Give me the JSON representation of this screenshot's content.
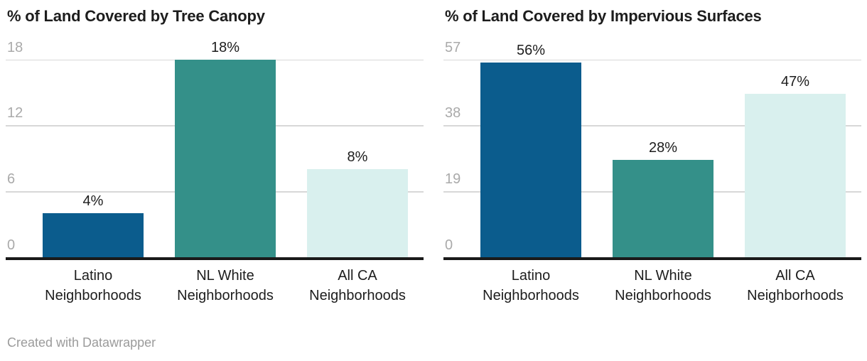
{
  "footer": {
    "credit": "Created with Datawrapper"
  },
  "colors": {
    "background": "#ffffff",
    "title_text": "#1d1d1d",
    "value_label_text": "#1d1d1d",
    "category_label_text": "#1d1d1d",
    "tick_label_text": "#aaaaaa",
    "gridline": "#d8d8d8",
    "baseline": "#1a1a1a",
    "footer_text": "#9b9b9b",
    "bar_latino": "#0b5c8d",
    "bar_nl_white": "#349089",
    "bar_all_ca": "#d9f0ee"
  },
  "chart_data": [
    {
      "type": "bar",
      "title": "% of Land Covered by Tree Canopy",
      "categories": [
        [
          "Latino",
          "Neighborhoods"
        ],
        [
          "NL White",
          "Neighborhoods"
        ],
        [
          "All CA",
          "Neighborhoods"
        ]
      ],
      "values": [
        4,
        18,
        8
      ],
      "value_labels": [
        "4%",
        "18%",
        "8%"
      ],
      "bar_color_keys": [
        "bar_latino",
        "bar_nl_white",
        "bar_all_ca"
      ],
      "yticks": [
        0,
        6,
        12,
        18
      ],
      "ytick_labels": [
        "0",
        "6",
        "12",
        "18"
      ],
      "ylim": [
        0,
        18
      ],
      "xlabel": "",
      "ylabel": "",
      "grid": true,
      "legend": "none"
    },
    {
      "type": "bar",
      "title": "% of Land Covered by Impervious Surfaces",
      "categories": [
        [
          "Latino",
          "Neighborhoods"
        ],
        [
          "NL White",
          "Neighborhoods"
        ],
        [
          "All CA",
          "Neighborhoods"
        ]
      ],
      "values": [
        56,
        28,
        47
      ],
      "value_labels": [
        "56%",
        "28%",
        "47%"
      ],
      "bar_color_keys": [
        "bar_latino",
        "bar_nl_white",
        "bar_all_ca"
      ],
      "yticks": [
        0,
        19,
        38,
        57
      ],
      "ytick_labels": [
        "0",
        "19",
        "38",
        "57"
      ],
      "ylim": [
        0,
        57
      ],
      "xlabel": "",
      "ylabel": "",
      "grid": true,
      "legend": "none"
    }
  ]
}
